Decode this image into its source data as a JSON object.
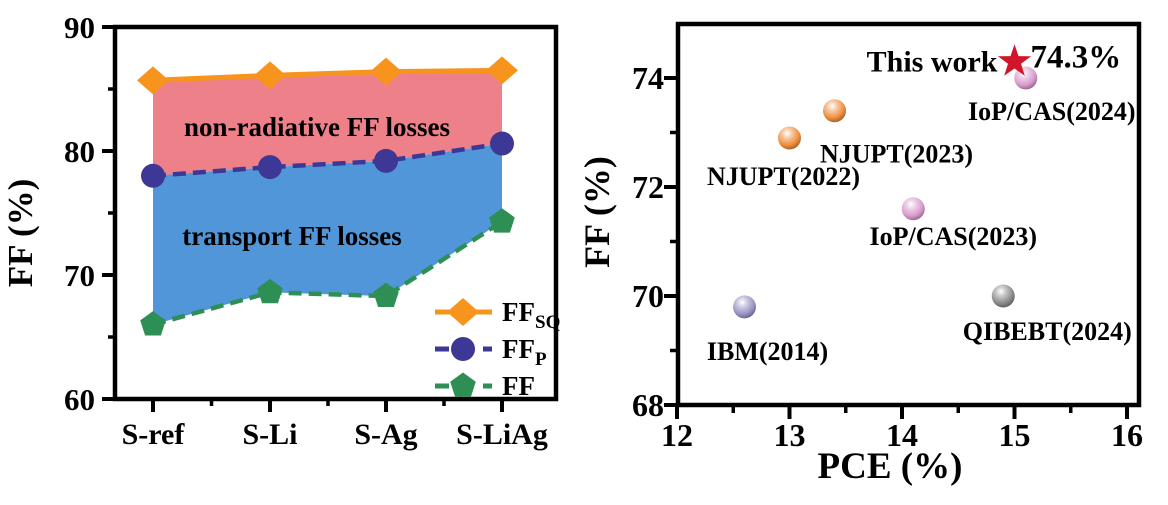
{
  "figure_bg": "#FFFFFF",
  "chart_data": [
    {
      "id": "ff-losses",
      "type": "line",
      "title": "",
      "xlabel": "",
      "ylabel": "FF (%)",
      "ylim": [
        60,
        90
      ],
      "yticks": [
        "60",
        "70",
        "80",
        "90"
      ],
      "yminor": [
        65,
        75,
        85
      ],
      "categories": [
        "S-ref",
        "S-Li",
        "S-Ag",
        "S-LiAg"
      ],
      "grid": false,
      "legend_position": "bottom-right-inside",
      "series": [
        {
          "name": "FF_SQ",
          "legend_main": "FF",
          "legend_sub": "SQ",
          "marker": "diamond",
          "color": "#F7941E",
          "line": "solid",
          "values": [
            85.7,
            86.1,
            86.4,
            86.5
          ]
        },
        {
          "name": "FF_P",
          "legend_main": "FF",
          "legend_sub": "P",
          "marker": "circle",
          "color": "#3D3795",
          "line": "dashed",
          "values": [
            78.0,
            78.7,
            79.2,
            80.6
          ]
        },
        {
          "name": "FF",
          "legend_main": "FF",
          "legend_sub": "",
          "marker": "pentagon",
          "color": "#2E8F55",
          "line": "dashed",
          "values": [
            66.0,
            68.6,
            68.3,
            74.3
          ]
        }
      ],
      "areas": [
        {
          "label": "non-radiative FF losses",
          "upper": "FF_SQ",
          "lower": "FF_P",
          "fill": "#EE8089",
          "text_color": "#1A1216"
        },
        {
          "label": "transport FF losses",
          "upper": "FF_P",
          "lower": "FF",
          "fill": "#5096D8",
          "text_color": "#15154B"
        }
      ]
    },
    {
      "id": "ff-vs-pce",
      "type": "scatter",
      "title": "",
      "xlabel": "PCE (%)",
      "ylabel": "FF (%)",
      "xlim": [
        12,
        16
      ],
      "ylim": [
        68,
        75
      ],
      "xticks": [
        "12",
        "13",
        "14",
        "15",
        "16"
      ],
      "yticks": [
        "68",
        "70",
        "72",
        "74"
      ],
      "xminor": [
        12.5,
        13.5,
        14.5,
        15.5
      ],
      "yminor": [
        69,
        71,
        73
      ],
      "grid": false,
      "points": [
        {
          "label": "IBM(2014)",
          "x": 12.6,
          "y": 69.8,
          "color": "#9793C4"
        },
        {
          "label": "NJUPT(2022)",
          "x": 13.0,
          "y": 72.9,
          "color": "#EF8D3C"
        },
        {
          "label": "NJUPT(2023)",
          "x": 13.4,
          "y": 73.4,
          "color": "#EF8D3C"
        },
        {
          "label": "IoP/CAS(2023)",
          "x": 14.1,
          "y": 71.6,
          "color": "#D898CB"
        },
        {
          "label": "IoP/CAS(2024)",
          "x": 15.1,
          "y": 74.0,
          "color": "#D898CB"
        },
        {
          "label": "QIBEBT(2024)",
          "x": 14.9,
          "y": 70.0,
          "color": "#8A8A8A"
        }
      ],
      "highlight": {
        "label": "This work",
        "x": 15.0,
        "y": 74.3,
        "value_label": "74.3%",
        "star_color": "#D2152B",
        "value_color": "#BE1628",
        "label_color": "#000000"
      }
    }
  ]
}
